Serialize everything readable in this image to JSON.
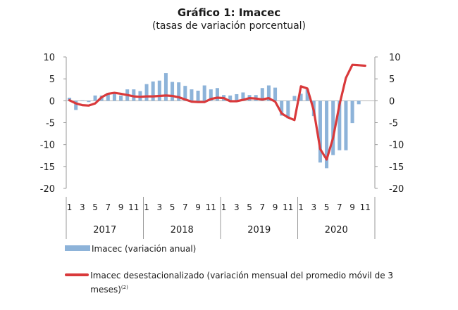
{
  "title": "Gráfico 1: Imacec",
  "subtitle": "(tasas de variación porcentual)",
  "legend": {
    "bars_label": "Imacec (variación anual)",
    "line_label": "Imacec desestacionalizado (variación mensual del promedio móvil de 3 meses)",
    "line_footnote": "(2)"
  },
  "colors": {
    "bars": "#8db3d9",
    "line": "#d9393b",
    "axis": "#999999"
  },
  "chart_data": {
    "type": "bar",
    "title": "Gráfico 1: Imacec",
    "subtitle": "(tasas de variación porcentual)",
    "ylim": [
      -20,
      10
    ],
    "yticks": [
      10,
      5,
      0,
      -5,
      -10,
      -15,
      -20
    ],
    "y2lim": [
      -20,
      10
    ],
    "y2ticks": [
      10,
      5,
      0,
      -5,
      -10,
      -15,
      -20
    ],
    "grid": false,
    "legend_position": "bottom",
    "years": [
      "2017",
      "2018",
      "2019",
      "2020"
    ],
    "month_tick_labels": [
      "1",
      "3",
      "5",
      "7",
      "9",
      "11"
    ],
    "months": [
      "2017-01",
      "2017-02",
      "2017-03",
      "2017-04",
      "2017-05",
      "2017-06",
      "2017-07",
      "2017-08",
      "2017-09",
      "2017-10",
      "2017-11",
      "2017-12",
      "2018-01",
      "2018-02",
      "2018-03",
      "2018-04",
      "2018-05",
      "2018-06",
      "2018-07",
      "2018-08",
      "2018-09",
      "2018-10",
      "2018-11",
      "2018-12",
      "2019-01",
      "2019-02",
      "2019-03",
      "2019-04",
      "2019-05",
      "2019-06",
      "2019-07",
      "2019-08",
      "2019-09",
      "2019-10",
      "2019-11",
      "2019-12",
      "2020-01",
      "2020-02",
      "2020-03",
      "2020-04",
      "2020-05",
      "2020-06",
      "2020-07",
      "2020-08",
      "2020-09",
      "2020-10",
      "2020-11",
      "2020-12"
    ],
    "series": [
      {
        "name": "Imacec (variación anual)",
        "type": "bar",
        "values": [
          0.7,
          -2.1,
          0.1,
          -0.3,
          1.2,
          1.2,
          1.8,
          1.6,
          1.2,
          2.6,
          2.6,
          2.2,
          3.8,
          4.4,
          4.6,
          6.3,
          4.3,
          4.2,
          3.4,
          2.6,
          2.3,
          3.5,
          2.6,
          2.9,
          1.3,
          1.2,
          1.5,
          1.9,
          1.3,
          1.3,
          2.9,
          3.5,
          3.0,
          -3.4,
          -4.0,
          1.1,
          1.6,
          2.6,
          -3.5,
          -14.1,
          -15.4,
          -12.4,
          -11.3,
          -11.3,
          -5.1,
          -0.8,
          null,
          null
        ]
      },
      {
        "name": "Imacec desestacionalizado (variación mensual del promedio móvil de 3 meses)",
        "type": "line",
        "axis": "right",
        "values": [
          0.1,
          -0.6,
          -1.0,
          -1.1,
          -0.6,
          0.8,
          1.6,
          1.8,
          1.6,
          1.3,
          1.0,
          0.9,
          1.0,
          1.0,
          1.1,
          1.2,
          1.1,
          0.8,
          0.3,
          -0.2,
          -0.3,
          -0.3,
          0.4,
          0.7,
          0.6,
          -0.1,
          -0.1,
          0.2,
          0.6,
          0.5,
          0.3,
          0.6,
          -0.2,
          -2.9,
          -3.8,
          -4.4,
          3.3,
          2.8,
          -2.2,
          -11.0,
          -13.4,
          -8.5,
          -0.9,
          5.2,
          8.2,
          8.1,
          8.0,
          null
        ]
      }
    ]
  }
}
